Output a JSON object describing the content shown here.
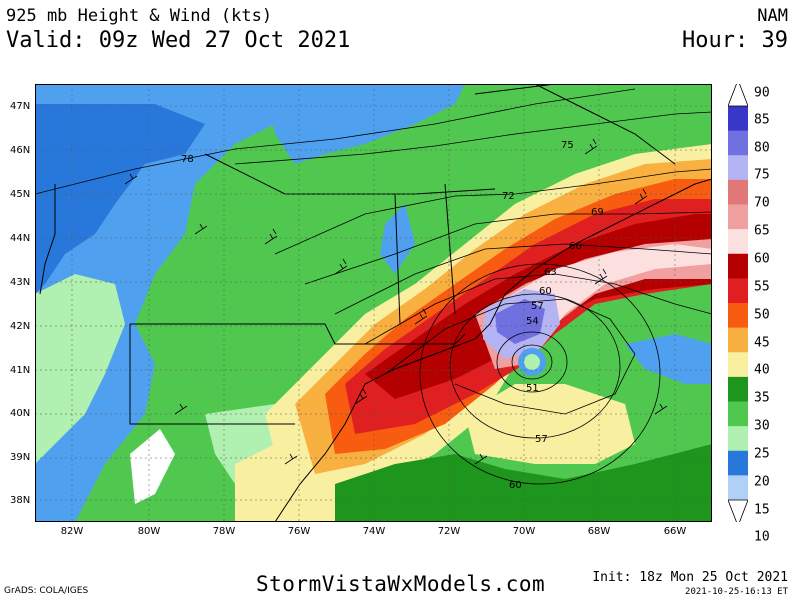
{
  "header": {
    "title": "925 mb Height & Wind (kts)",
    "valid": "Valid: 09z Wed 27 Oct 2021",
    "model": "NAM",
    "hour": "Hour: 39"
  },
  "map": {
    "lat_labels": [
      "47N",
      "46N",
      "45N",
      "44N",
      "43N",
      "42N",
      "41N",
      "40N",
      "39N",
      "38N"
    ],
    "lon_labels": [
      "82W",
      "80W",
      "78W",
      "76W",
      "74W",
      "72W",
      "70W",
      "68W",
      "66W"
    ],
    "contour_labels": [
      "78",
      "75",
      "72",
      "69",
      "66",
      "63",
      "60",
      "57",
      "54",
      "51",
      "57",
      "60"
    ],
    "contour_values": [
      78,
      75,
      72,
      69,
      66,
      63,
      60,
      57,
      54,
      51,
      57,
      60
    ]
  },
  "colorbar": {
    "labels": [
      "90",
      "85",
      "80",
      "75",
      "70",
      "65",
      "60",
      "55",
      "50",
      "45",
      "40",
      "35",
      "30",
      "25",
      "20",
      "15",
      "10"
    ],
    "colors": [
      "#3838c8",
      "#7070e0",
      "#b4b4f4",
      "#e07878",
      "#f0a0a0",
      "#fce0e0",
      "#b40000",
      "#e02020",
      "#f85c10",
      "#f8b040",
      "#f8f0a0",
      "#1e961e",
      "#50c850",
      "#b0f0b0",
      "#2878dc",
      "#50a0f0",
      "#b0d0f8"
    ]
  },
  "footer": {
    "source": "GrADS: COLA/IGES",
    "site": "StormVistaWxModels.com",
    "init": "Init: 18z Mon 25 Oct 2021",
    "timestamp": "2021-10-25-16:13 ET"
  }
}
